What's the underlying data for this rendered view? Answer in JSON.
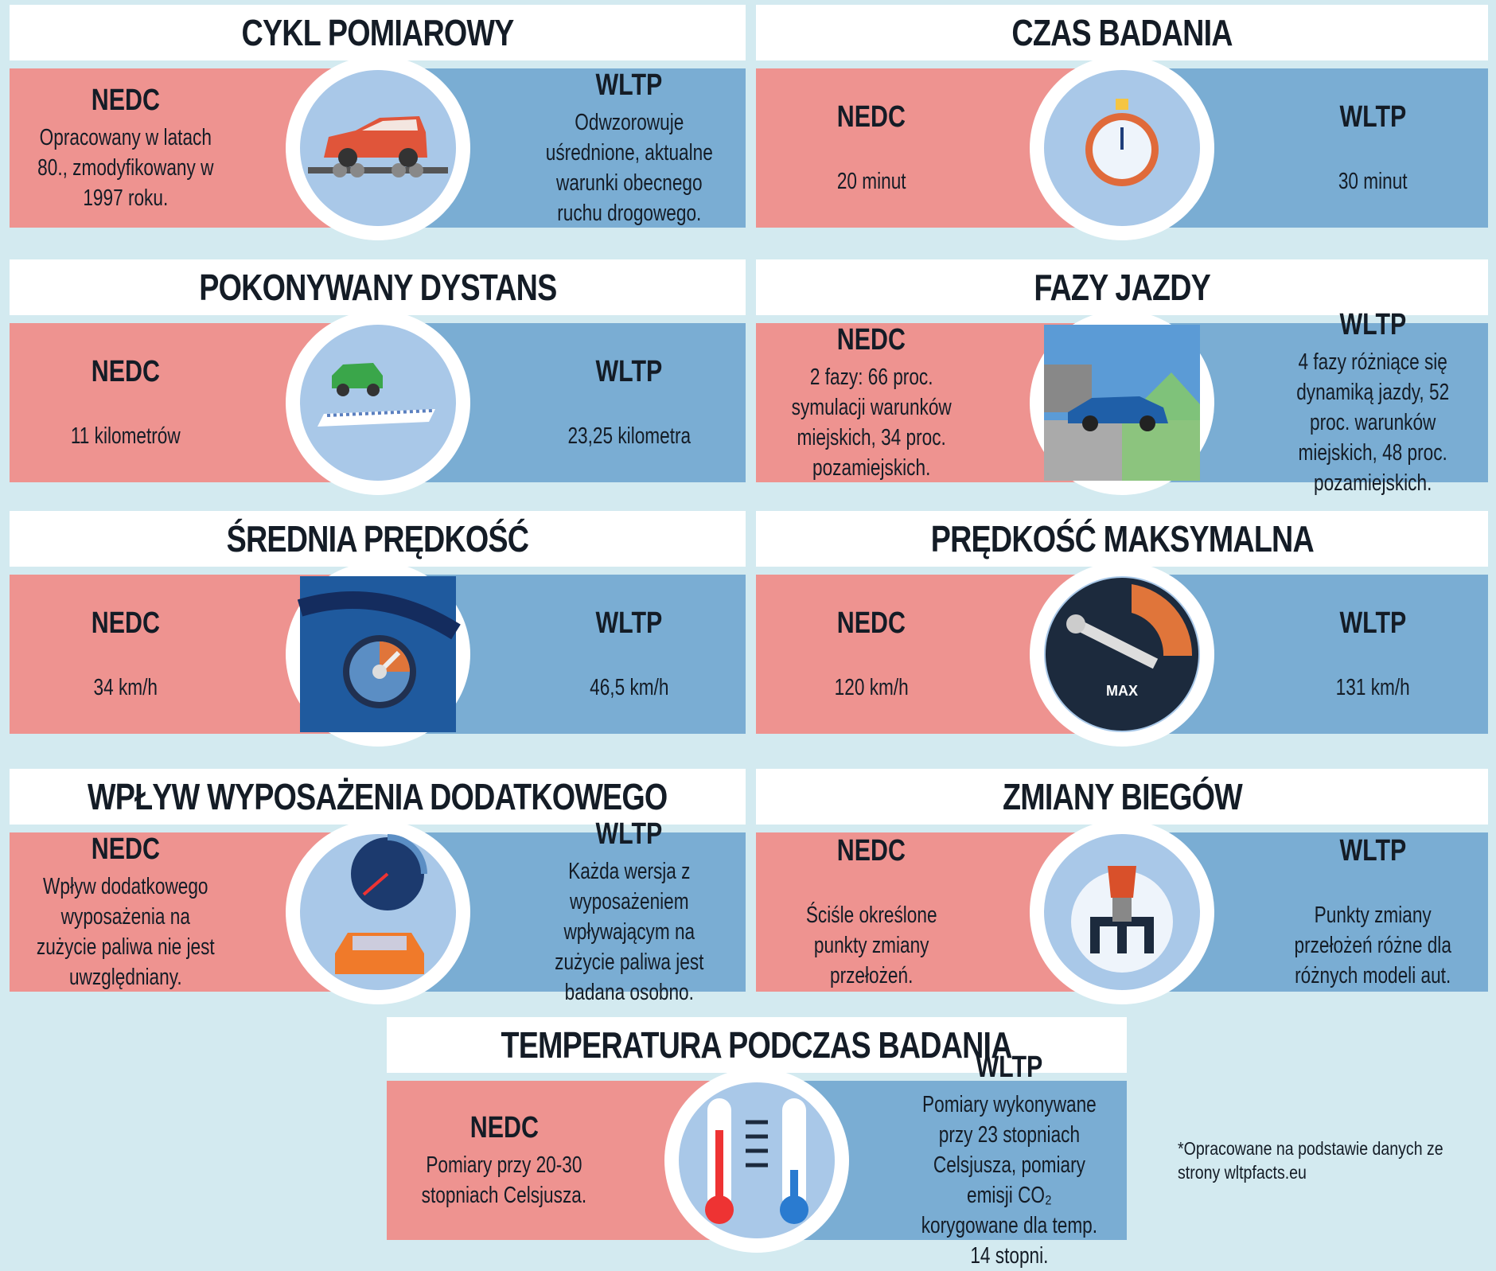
{
  "sections": [
    {
      "title": "CYKL POMIAROWY",
      "icon": "car-on-dyno-icon",
      "nedc_label": "NEDC",
      "nedc_text": "Opracowany w latach 80., zmodyfikowany w 1997 roku.",
      "wltp_label": "WLTP",
      "wltp_text": "Odwzorowuje uśrednione, aktualne warunki obecnego ruchu drogowego."
    },
    {
      "title": "CZAS BADANIA",
      "icon": "stopwatch-icon",
      "nedc_label": "NEDC",
      "nedc_text": "20 minut",
      "wltp_label": "WLTP",
      "wltp_text": "30 minut"
    },
    {
      "title": "POKONYWANY DYSTANS",
      "icon": "car-distance-icon",
      "nedc_label": "NEDC",
      "nedc_text": "11 kilometrów",
      "wltp_label": "WLTP",
      "wltp_text": "23,25 kilometra"
    },
    {
      "title": "FAZY JAZDY",
      "icon": "city-rural-car-icon",
      "nedc_label": "NEDC",
      "nedc_text": "2 fazy: 66 proc. symulacji warunków miejskich, 34 proc. pozamiejskich.",
      "wltp_label": "WLTP",
      "wltp_text": "4 fazy różniące się dynamiką jazdy, 52 proc. warunków miejskich, 48 proc. pozamiejskich."
    },
    {
      "title": "ŚREDNIA PRĘDKOŚĆ",
      "icon": "speedometer-icon",
      "nedc_label": "NEDC",
      "nedc_text": "34 km/h",
      "wltp_label": "WLTP",
      "wltp_text": "46,5 km/h"
    },
    {
      "title": "PRĘDKOŚĆ MAKSYMALNA",
      "icon": "max-speed-gauge-icon",
      "icon_label": "MAX",
      "nedc_label": "NEDC",
      "nedc_text": "120 km/h",
      "wltp_label": "WLTP",
      "wltp_text": "131 km/h"
    },
    {
      "title": "WPŁYW WYPOSAŻENIA DODATKOWEGO",
      "icon": "fuel-gauge-car-icon",
      "nedc_label": "NEDC",
      "nedc_text": "Wpływ dodatkowego wyposażenia na zużycie paliwa nie jest uwzględniany.",
      "wltp_label": "WLTP",
      "wltp_text": "Każda wersja z wyposażeniem wpływającym na zużycie paliwa jest badana osobno."
    },
    {
      "title": "ZMIANY BIEGÓW",
      "icon": "gear-shifter-icon",
      "nedc_label": "NEDC",
      "nedc_text": "Ściśle określone punkty zmiany przełożeń.",
      "wltp_label": "WLTP",
      "wltp_text": "Punkty zmiany przełożeń różne dla różnych modeli aut."
    },
    {
      "title": "TEMPERATURA PODCZAS BADANIA",
      "icon": "thermometers-icon",
      "nedc_label": "NEDC",
      "nedc_text": "Pomiary przy 20-30 stopniach Celsjusza.",
      "wltp_label": "WLTP",
      "wltp_text": "Pomiary wykonywane przy 23 stopniach Celsjusza, pomiary emisji CO₂ korygowane dla temp. 14 stopni."
    }
  ],
  "footnote": "*Opracowane na podstawie danych ze strony wltpfacts.eu",
  "colors": {
    "nedc": "#ee9390",
    "wltp": "#7aadd3",
    "background": "#d3eaf0"
  }
}
